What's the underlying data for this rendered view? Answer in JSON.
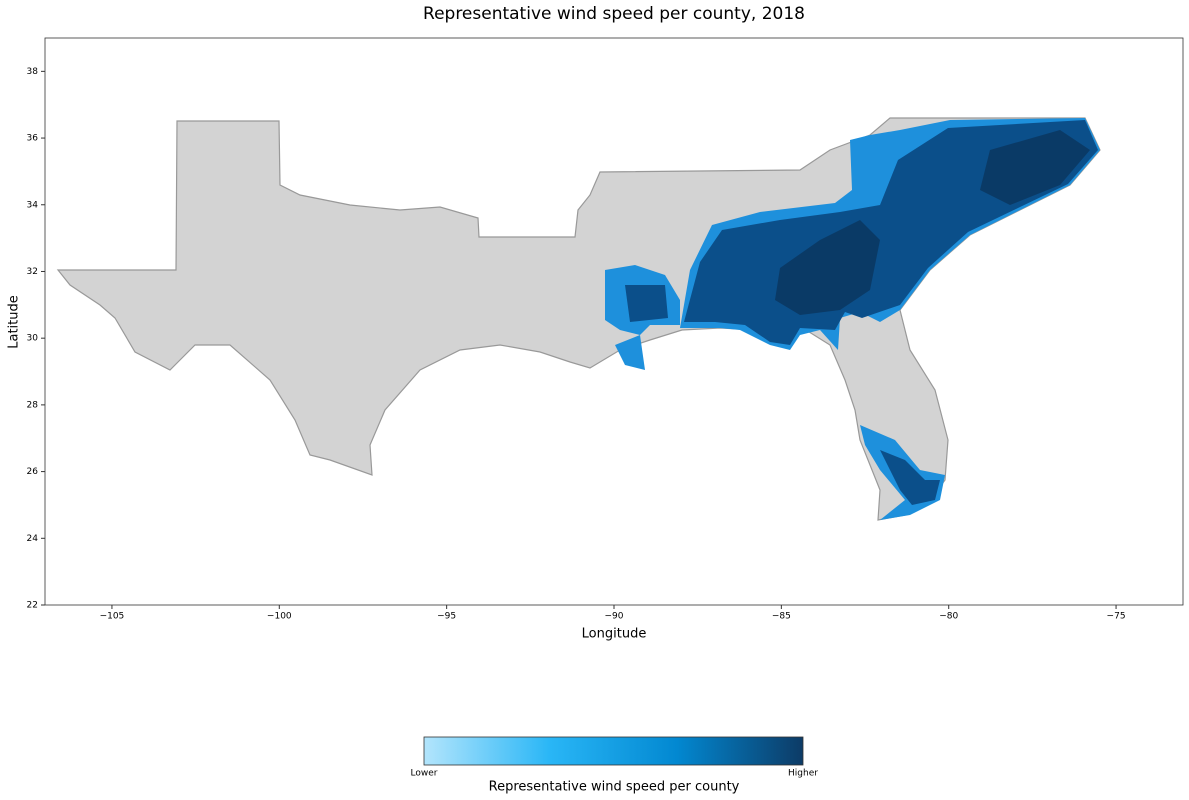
{
  "chart_data": {
    "type": "choropleth",
    "title": "Representative wind speed per county, 2018",
    "xlabel": "Longitude",
    "ylabel": "Latitude",
    "xlim": [
      -107,
      -73
    ],
    "ylim": [
      22,
      39
    ],
    "xticks": [
      {
        "value": -105,
        "label": "−105"
      },
      {
        "value": -100,
        "label": "−100"
      },
      {
        "value": -95,
        "label": "−95"
      },
      {
        "value": -90,
        "label": "−90"
      },
      {
        "value": -85,
        "label": "−85"
      },
      {
        "value": -80,
        "label": "−80"
      },
      {
        "value": -75,
        "label": "−75"
      }
    ],
    "yticks": [
      22,
      24,
      26,
      28,
      30,
      32,
      34,
      36,
      38
    ],
    "colorbar": {
      "label": "Representative wind speed per county",
      "labels": [
        "Lower",
        "Higher"
      ],
      "colors": [
        "#b3e5fc",
        "#29b6f6",
        "#0288d1",
        "#0d3b66"
      ]
    }
  }
}
